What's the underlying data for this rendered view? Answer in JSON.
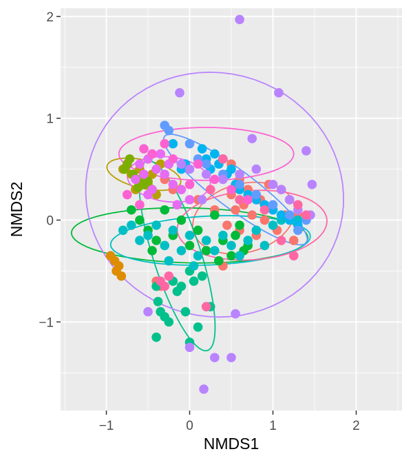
{
  "chart_data": {
    "type": "scatter",
    "title": "",
    "xlabel": "NMDS1",
    "ylabel": "NMDS2",
    "xlim": [
      -1.55,
      2.55
    ],
    "ylim": [
      -1.87,
      2.08
    ],
    "xticks": [
      -1,
      0,
      1,
      2
    ],
    "xtick_labels": [
      "−1",
      "0",
      "1",
      "2"
    ],
    "yticks": [
      -1,
      0,
      1,
      2
    ],
    "ytick_labels": [
      "−1",
      "0",
      "1",
      "2"
    ],
    "grid": true,
    "panel_background": "#ebebeb",
    "grid_color": "#ffffff",
    "legend": "none",
    "series": [
      {
        "color": "#F8766D",
        "points": [
          [
            -0.3,
            0.4
          ],
          [
            -0.2,
            0.3
          ],
          [
            0.1,
            0.2
          ],
          [
            0.3,
            0.1
          ],
          [
            0.45,
            -0.05
          ],
          [
            0.5,
            0.25
          ],
          [
            0.55,
            0.1
          ],
          [
            0.6,
            -0.1
          ],
          [
            0.65,
            0.15
          ],
          [
            0.7,
            0.3
          ],
          [
            0.75,
            0.05
          ],
          [
            0.8,
            -0.15
          ],
          [
            0.85,
            0.2
          ],
          [
            0.9,
            0.0
          ],
          [
            0.95,
            0.35
          ],
          [
            1.0,
            0.1
          ],
          [
            1.05,
            -0.1
          ],
          [
            1.1,
            0.3
          ],
          [
            1.15,
            0.05
          ],
          [
            1.2,
            0.2
          ],
          [
            1.25,
            -0.2
          ],
          [
            1.3,
            0.05
          ],
          [
            0.2,
            -0.3
          ],
          [
            0.4,
            -0.45
          ],
          [
            0.6,
            0.4
          ],
          [
            0.5,
            0.55
          ],
          [
            -0.4,
            -0.6
          ],
          [
            -0.35,
            -0.65
          ]
        ],
        "ellipse": {
          "cx": 0.65,
          "cy": 0.02,
          "rx": 0.62,
          "ry": 0.34,
          "angle": 10
        }
      },
      {
        "color": "#DE8C00",
        "points": [
          [
            -0.9,
            -0.4
          ],
          [
            -0.85,
            -0.45
          ],
          [
            -0.88,
            -0.5
          ],
          [
            -0.82,
            -0.55
          ],
          [
            -0.95,
            -0.35
          ]
        ],
        "ellipse": null
      },
      {
        "color": "#B79F00",
        "points": [
          [
            -0.8,
            0.5
          ],
          [
            -0.75,
            0.55
          ],
          [
            -0.7,
            0.45
          ],
          [
            -0.6,
            0.5
          ],
          [
            -0.55,
            0.4
          ],
          [
            -0.5,
            0.35
          ],
          [
            -0.45,
            0.45
          ],
          [
            -0.65,
            0.3
          ],
          [
            -0.35,
            0.55
          ],
          [
            -0.4,
            0.25
          ]
        ],
        "ellipse": {
          "cx": -0.55,
          "cy": 0.45,
          "rx": 0.45,
          "ry": 0.14,
          "angle": -10
        }
      },
      {
        "color": "#7CAE00",
        "points": [
          [
            -0.75,
            0.55
          ],
          [
            -0.72,
            0.6
          ],
          [
            -0.78,
            0.5
          ],
          [
            -0.68,
            0.45
          ],
          [
            -0.6,
            0.4
          ],
          [
            -0.55,
            0.35
          ],
          [
            -0.5,
            0.38
          ],
          [
            -0.45,
            0.3
          ],
          [
            -0.62,
            0.32
          ]
        ],
        "ellipse": null
      },
      {
        "color": "#00BA38",
        "points": [
          [
            -0.6,
            0.0
          ],
          [
            -0.5,
            -0.1
          ],
          [
            -0.4,
            -0.2
          ],
          [
            -0.3,
            0.1
          ],
          [
            -0.2,
            -0.15
          ],
          [
            -0.1,
            0.0
          ],
          [
            0.0,
            -0.25
          ],
          [
            0.1,
            -0.1
          ],
          [
            0.2,
            -0.3
          ],
          [
            0.3,
            0.05
          ],
          [
            0.4,
            -0.2
          ],
          [
            0.5,
            -0.35
          ],
          [
            0.6,
            -0.05
          ],
          [
            0.7,
            -0.25
          ],
          [
            0.55,
            -0.15
          ],
          [
            -0.7,
            0.1
          ],
          [
            -0.45,
            -0.3
          ],
          [
            0.35,
            -0.4
          ],
          [
            0.65,
            -0.3
          ]
        ],
        "ellipse": {
          "cx": 0.0,
          "cy": -0.15,
          "rx": 1.42,
          "ry": 0.27,
          "angle": -1
        }
      },
      {
        "color": "#00C08B",
        "points": [
          [
            -0.4,
            -0.65
          ],
          [
            -0.38,
            -0.8
          ],
          [
            -0.35,
            -0.9
          ],
          [
            -0.3,
            -0.95
          ],
          [
            -0.25,
            -1.0
          ],
          [
            -0.2,
            -0.6
          ],
          [
            -0.1,
            -0.65
          ],
          [
            0.0,
            -0.5
          ],
          [
            0.05,
            -0.6
          ],
          [
            0.1,
            -1.05
          ],
          [
            0.2,
            -0.85
          ],
          [
            0.25,
            -0.85
          ],
          [
            -0.4,
            -1.15
          ],
          [
            -0.05,
            -0.9
          ],
          [
            0.0,
            -1.2
          ],
          [
            -0.15,
            -0.7
          ],
          [
            0.15,
            -0.55
          ]
        ],
        "ellipse": {
          "cx": -0.15,
          "cy": -0.35,
          "rx": 1.0,
          "ry": 0.28,
          "angle": -68
        }
      },
      {
        "color": "#00BFC4",
        "points": [
          [
            -0.8,
            -0.1
          ],
          [
            -0.7,
            -0.05
          ],
          [
            -0.6,
            -0.2
          ],
          [
            -0.5,
            -0.15
          ],
          [
            -0.4,
            -0.05
          ],
          [
            -0.3,
            -0.25
          ],
          [
            -0.2,
            -0.1
          ],
          [
            -0.1,
            -0.3
          ],
          [
            0.0,
            -0.15
          ],
          [
            0.1,
            -0.35
          ],
          [
            0.2,
            -0.2
          ],
          [
            0.3,
            -0.3
          ],
          [
            0.4,
            -0.15
          ],
          [
            0.5,
            -0.25
          ],
          [
            0.6,
            -0.35
          ],
          [
            0.7,
            -0.2
          ],
          [
            0.8,
            -0.1
          ],
          [
            0.9,
            -0.25
          ],
          [
            1.0,
            -0.05
          ],
          [
            1.1,
            0.0
          ],
          [
            1.2,
            0.05
          ],
          [
            1.3,
            0.0
          ],
          [
            -0.25,
            -0.4
          ],
          [
            0.05,
            -0.45
          ]
        ],
        "ellipse": {
          "cx": 0.25,
          "cy": -0.2,
          "rx": 1.2,
          "ry": 0.24,
          "angle": 2
        }
      },
      {
        "color": "#00B4F0",
        "points": [
          [
            0.15,
            0.7
          ],
          [
            0.2,
            0.6
          ],
          [
            0.25,
            0.5
          ],
          [
            0.3,
            0.65
          ],
          [
            0.35,
            0.55
          ],
          [
            0.4,
            0.6
          ],
          [
            0.45,
            0.45
          ],
          [
            0.5,
            0.5
          ],
          [
            0.55,
            0.35
          ],
          [
            0.6,
            0.3
          ],
          [
            0.7,
            0.25
          ],
          [
            0.8,
            0.2
          ],
          [
            0.9,
            0.15
          ],
          [
            1.0,
            0.1
          ],
          [
            1.1,
            0.05
          ],
          [
            1.2,
            0.0
          ],
          [
            1.3,
            -0.05
          ],
          [
            -0.05,
            0.55
          ],
          [
            -0.2,
            0.75
          ],
          [
            -0.1,
            0.5
          ]
        ],
        "ellipse": null
      },
      {
        "color": "#619CFF",
        "points": [
          [
            -0.3,
            0.93
          ],
          [
            -0.25,
            0.88
          ],
          [
            0.0,
            0.75
          ],
          [
            0.1,
            0.6
          ],
          [
            0.2,
            0.55
          ],
          [
            0.4,
            0.45
          ],
          [
            0.6,
            0.35
          ],
          [
            0.8,
            0.25
          ],
          [
            1.0,
            0.15
          ],
          [
            1.2,
            0.05
          ],
          [
            1.3,
            -0.1
          ],
          [
            1.4,
            0.0
          ]
        ],
        "ellipse": {
          "cx": 0.55,
          "cy": 0.3,
          "rx": 1.0,
          "ry": 0.2,
          "angle": -31
        }
      },
      {
        "color": "#B983FF",
        "points": [
          [
            -0.1,
            0.55
          ],
          [
            0.0,
            0.5
          ],
          [
            0.2,
            0.45
          ],
          [
            0.4,
            0.4
          ],
          [
            0.6,
            0.45
          ],
          [
            0.8,
            0.5
          ],
          [
            1.0,
            0.35
          ],
          [
            1.1,
            0.3
          ],
          [
            1.2,
            0.2
          ],
          [
            1.3,
            0.1
          ],
          [
            1.45,
            0.05
          ],
          [
            1.47,
            0.35
          ],
          [
            1.4,
            0.68
          ],
          [
            0.75,
            0.8
          ],
          [
            1.07,
            1.25
          ],
          [
            0.6,
            1.97
          ],
          [
            -0.12,
            1.25
          ],
          [
            0.0,
            -1.25
          ],
          [
            0.3,
            -1.35
          ],
          [
            0.5,
            -1.35
          ],
          [
            0.55,
            -0.92
          ],
          [
            0.17,
            -1.66
          ],
          [
            -0.5,
            -0.9
          ],
          [
            0.15,
            0.2
          ]
        ],
        "ellipse": {
          "cx": 0.3,
          "cy": 0.25,
          "rx": 1.55,
          "ry": 1.2,
          "angle": -4
        }
      },
      {
        "color": "#E76BF3",
        "points": [
          [
            -0.6,
            0.55
          ],
          [
            -0.5,
            0.6
          ],
          [
            -0.4,
            0.5
          ],
          [
            -0.3,
            0.45
          ],
          [
            -0.2,
            0.35
          ],
          [
            -0.1,
            0.3
          ],
          [
            0.0,
            0.2
          ],
          [
            -0.55,
            0.45
          ],
          [
            -0.35,
            0.65
          ],
          [
            -0.25,
            0.55
          ],
          [
            -0.45,
            0.3
          ],
          [
            -0.15,
            0.15
          ],
          [
            -0.65,
            0.4
          ],
          [
            -0.5,
            0.25
          ]
        ],
        "ellipse": {
          "cx": -0.25,
          "cy": 0.4,
          "rx": 0.5,
          "ry": 0.22,
          "angle": -5
        }
      },
      {
        "color": "#FD61D1",
        "points": [
          [
            -0.55,
            0.7
          ],
          [
            -0.45,
            0.65
          ],
          [
            -0.3,
            0.75
          ],
          [
            -0.2,
            0.6
          ],
          [
            0.1,
            0.55
          ],
          [
            0.3,
            0.4
          ],
          [
            0.5,
            0.3
          ],
          [
            0.7,
            0.2
          ],
          [
            -0.75,
            0.25
          ],
          [
            -0.6,
            0.15
          ],
          [
            0.0,
            0.35
          ]
        ],
        "ellipse": {
          "cx": 0.2,
          "cy": 0.65,
          "rx": 1.05,
          "ry": 0.26,
          "angle": 0
        }
      },
      {
        "color": "#FF67A4",
        "points": [
          [
            -0.35,
            -0.6
          ],
          [
            -0.3,
            -0.65
          ],
          [
            -0.25,
            -0.55
          ],
          [
            0.2,
            -0.85
          ],
          [
            0.6,
            0.2
          ],
          [
            0.9,
            0.1
          ],
          [
            1.1,
            -0.2
          ],
          [
            1.25,
            -0.35
          ],
          [
            1.3,
            0.15
          ],
          [
            1.4,
            0.05
          ],
          [
            0.4,
            0.6
          ],
          [
            0.25,
            0.3
          ]
        ],
        "ellipse": {
          "cx": 0.75,
          "cy": -0.05,
          "rx": 0.9,
          "ry": 0.34,
          "angle": 3
        }
      }
    ]
  }
}
